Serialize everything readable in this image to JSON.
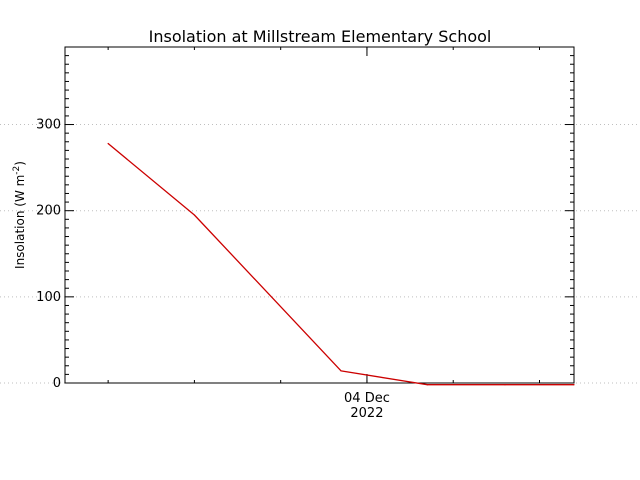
{
  "chart_data": {
    "type": "line",
    "title": "Insolation at Millstream Elementary School",
    "ylabel_main": "Insolation (W m",
    "ylabel_sup": "-2",
    "ylabel_close": ")",
    "xlabel": "",
    "x_tick_labels": [
      {
        "at": 0,
        "line1": "04 Dec",
        "line2": "2022"
      }
    ],
    "x": [
      -3.0,
      -2.0,
      -0.3,
      0.7,
      1.6,
      2.4
    ],
    "ylim": [
      0,
      390
    ],
    "xlim": [
      -3.5,
      2.4
    ],
    "y_ticks": [
      0,
      100,
      200,
      300
    ],
    "y_tick_labels": [
      "0",
      "100",
      "200",
      "300"
    ],
    "grid": true,
    "series": [
      {
        "color": "#cc0000",
        "values": [
          278,
          195,
          14,
          -2,
          -2,
          -2
        ]
      }
    ]
  }
}
